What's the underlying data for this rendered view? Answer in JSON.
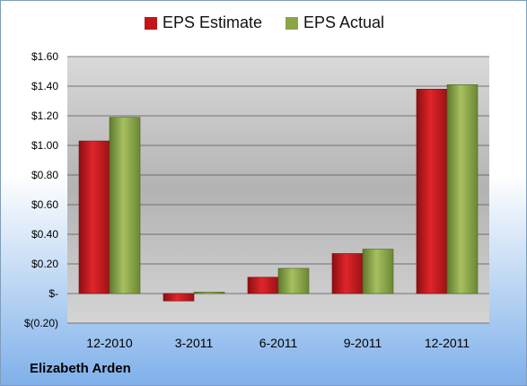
{
  "company": "Elizabeth Arden",
  "colors": {
    "estimate": "#c0151b",
    "actual": "#8aa447"
  },
  "chart_data": {
    "type": "bar",
    "categories": [
      "12-2010",
      "3-2011",
      "6-2011",
      "9-2011",
      "12-2011"
    ],
    "series": [
      {
        "name": "EPS Estimate",
        "values": [
          1.03,
          -0.05,
          0.11,
          0.27,
          1.38
        ]
      },
      {
        "name": "EPS Actual",
        "values": [
          1.19,
          0.01,
          0.17,
          0.3,
          1.41
        ]
      }
    ],
    "ylim": [
      -0.2,
      1.6
    ],
    "yticks": [
      -0.2,
      0,
      0.2,
      0.4,
      0.6,
      0.8,
      1.0,
      1.2,
      1.4,
      1.6
    ],
    "ytick_labels": [
      "$(0.20)",
      "$-",
      "$0.20",
      "$0.40",
      "$0.60",
      "$0.80",
      "$1.00",
      "$1.20",
      "$1.40",
      "$1.60"
    ],
    "grid": true,
    "legend_position": "top"
  }
}
